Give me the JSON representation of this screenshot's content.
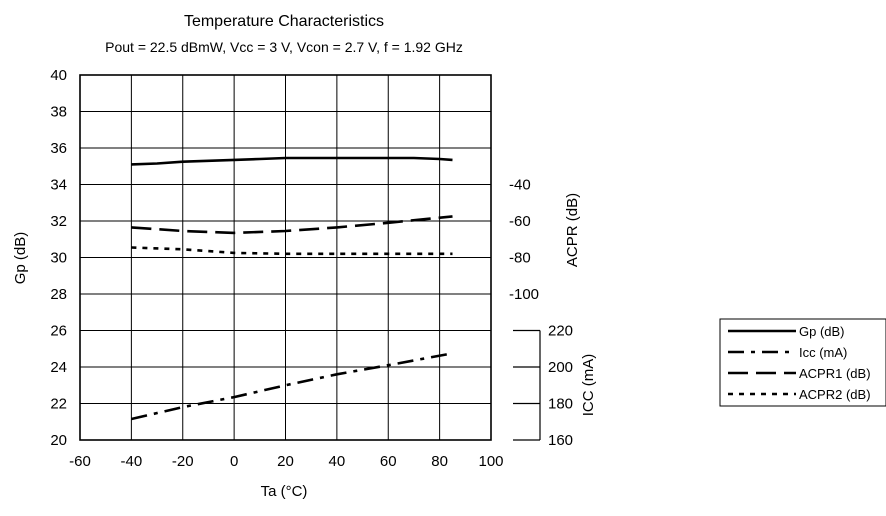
{
  "chart_data": {
    "type": "line",
    "title": "Temperature Characteristics",
    "subtitle": "Pout = 22.5 dBmW, Vcc = 3 V, Vcon = 2.7 V, f = 1.92 GHz",
    "xlabel": "Ta (°C)",
    "ylabel": "Gp (dB)",
    "y2label": "ACPR (dB)",
    "y3label": "ICC (mA)",
    "xlim": [
      -60,
      100
    ],
    "ylim": [
      20,
      40
    ],
    "xticks": [
      -60,
      -40,
      -20,
      0,
      20,
      40,
      60,
      80,
      100
    ],
    "yticks": [
      20,
      22,
      24,
      26,
      28,
      30,
      32,
      34,
      36,
      38,
      40
    ],
    "y2_ticks": [
      -40,
      -60,
      -80,
      -100
    ],
    "y3_ticks": [
      220,
      200,
      180,
      160
    ],
    "grid": true,
    "legend_position": "right",
    "series": [
      {
        "name": "Gp (dB)",
        "axis": "Gp (dB)",
        "style": "solid",
        "x": [
          -40,
          -30,
          -20,
          -10,
          0,
          10,
          20,
          30,
          40,
          50,
          60,
          70,
          80,
          85
        ],
        "y": [
          35.1,
          35.15,
          35.25,
          35.3,
          35.35,
          35.4,
          35.45,
          35.45,
          35.45,
          35.45,
          35.45,
          35.45,
          35.4,
          35.35
        ]
      },
      {
        "name": "Icc (mA)",
        "axis": "ICC (mA)",
        "style": "dashdot",
        "x": [
          -40,
          -20,
          0,
          20,
          40,
          60,
          85
        ],
        "y": [
          171.5,
          178,
          183.5,
          190,
          196,
          201,
          207.5
        ]
      },
      {
        "name": "ACPR1 (dB)",
        "axis": "ACPR (dB)",
        "style": "longdash",
        "x": [
          -40,
          -20,
          0,
          20,
          40,
          60,
          85
        ],
        "y": [
          -63.5,
          -65.5,
          -66.5,
          -65.5,
          -63.5,
          -61,
          -57.5
        ]
      },
      {
        "name": "ACPR2 (dB)",
        "axis": "ACPR (dB)",
        "style": "dotted",
        "x": [
          -40,
          -20,
          0,
          20,
          40,
          60,
          85
        ],
        "y": [
          -74.5,
          -75.5,
          -77.5,
          -78,
          -78,
          -78,
          -78
        ]
      }
    ],
    "colors": {
      "line": "#000000",
      "grid": "#000000",
      "background": "#ffffff"
    }
  }
}
